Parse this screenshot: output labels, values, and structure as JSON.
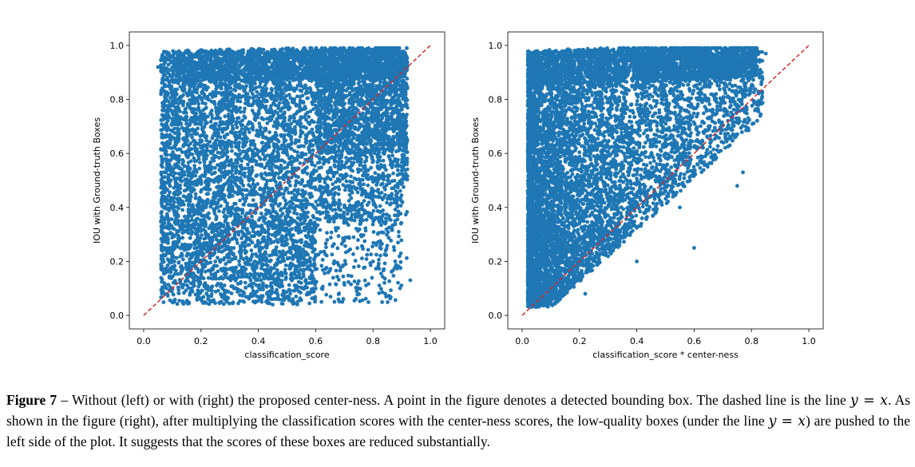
{
  "chart_data": [
    {
      "type": "scatter",
      "name": "left",
      "xlabel": "classification_score",
      "ylabel": "IOU with Ground-truth Boxes",
      "xlim": [
        -0.05,
        1.05
      ],
      "ylim": [
        -0.05,
        1.05
      ],
      "xticks": [
        "0.0",
        "0.2",
        "0.4",
        "0.6",
        "0.8",
        "1.0"
      ],
      "yticks": [
        "0.0",
        "0.2",
        "0.4",
        "0.6",
        "0.8",
        "1.0"
      ],
      "point_color": "#1f77b4",
      "reference_line": {
        "from": [
          0,
          0
        ],
        "to": [
          1,
          1
        ],
        "color": "#d62728",
        "style": "dashed"
      },
      "approx_point_count": 9000,
      "point_sample": [
        {
          "x": 0.05,
          "y": 0.92
        },
        {
          "x": 0.1,
          "y": 0.75
        },
        {
          "x": 0.12,
          "y": 0.55
        },
        {
          "x": 0.15,
          "y": 0.35
        },
        {
          "x": 0.2,
          "y": 0.95
        },
        {
          "x": 0.25,
          "y": 0.2
        },
        {
          "x": 0.3,
          "y": 0.45
        },
        {
          "x": 0.35,
          "y": 0.05
        },
        {
          "x": 0.4,
          "y": 0.98
        },
        {
          "x": 0.45,
          "y": 0.6
        },
        {
          "x": 0.5,
          "y": 0.3
        },
        {
          "x": 0.55,
          "y": 0.85
        },
        {
          "x": 0.6,
          "y": 0.1
        },
        {
          "x": 0.65,
          "y": 0.7
        },
        {
          "x": 0.7,
          "y": 0.4
        },
        {
          "x": 0.75,
          "y": 0.95
        },
        {
          "x": 0.8,
          "y": 0.2
        },
        {
          "x": 0.85,
          "y": 0.9
        },
        {
          "x": 0.9,
          "y": 0.55
        },
        {
          "x": 0.93,
          "y": 0.13
        },
        {
          "x": 0.08,
          "y": 0.1
        },
        {
          "x": 0.15,
          "y": 0.05
        },
        {
          "x": 0.45,
          "y": 0.04
        },
        {
          "x": 0.62,
          "y": 0.05
        },
        {
          "x": 0.9,
          "y": 0.97
        },
        {
          "x": 0.85,
          "y": 0.75
        },
        {
          "x": 0.72,
          "y": 0.6
        }
      ]
    },
    {
      "type": "scatter",
      "name": "right",
      "xlabel": "classification_score * center-ness",
      "ylabel": "IOU with Ground-truth Boxes",
      "xlim": [
        -0.05,
        1.05
      ],
      "ylim": [
        -0.05,
        1.05
      ],
      "xticks": [
        "0.0",
        "0.2",
        "0.4",
        "0.6",
        "0.8",
        "1.0"
      ],
      "yticks": [
        "0.0",
        "0.2",
        "0.4",
        "0.6",
        "0.8",
        "1.0"
      ],
      "point_color": "#1f77b4",
      "reference_line": {
        "from": [
          0,
          0
        ],
        "to": [
          1,
          1
        ],
        "color": "#d62728",
        "style": "dashed"
      },
      "approx_point_count": 9000,
      "point_sample": [
        {
          "x": 0.02,
          "y": 0.95
        },
        {
          "x": 0.05,
          "y": 0.6
        },
        {
          "x": 0.08,
          "y": 0.3
        },
        {
          "x": 0.1,
          "y": 0.12
        },
        {
          "x": 0.15,
          "y": 0.85
        },
        {
          "x": 0.2,
          "y": 0.5
        },
        {
          "x": 0.25,
          "y": 0.3
        },
        {
          "x": 0.3,
          "y": 0.97
        },
        {
          "x": 0.35,
          "y": 0.65
        },
        {
          "x": 0.4,
          "y": 0.45
        },
        {
          "x": 0.45,
          "y": 0.85
        },
        {
          "x": 0.5,
          "y": 0.6
        },
        {
          "x": 0.55,
          "y": 0.4
        },
        {
          "x": 0.6,
          "y": 0.9
        },
        {
          "x": 0.65,
          "y": 0.7
        },
        {
          "x": 0.7,
          "y": 0.95
        },
        {
          "x": 0.75,
          "y": 0.48
        },
        {
          "x": 0.8,
          "y": 0.85
        },
        {
          "x": 0.85,
          "y": 0.97
        },
        {
          "x": 0.03,
          "y": 0.05
        },
        {
          "x": 0.22,
          "y": 0.08
        },
        {
          "x": 0.4,
          "y": 0.2
        },
        {
          "x": 0.6,
          "y": 0.25
        },
        {
          "x": 0.77,
          "y": 0.53
        }
      ]
    }
  ],
  "caption": {
    "label": "Figure 7",
    "dash": " – ",
    "line1": "Without (left) or with (right) the proposed center-ness. A point in the figure denotes a detected bounding box. The dashed line",
    "line2a": "is the line ",
    "math": "y = x",
    "line2b": ". As shown in the figure (right), after multiplying the classification scores with the center-ness scores, the low-quality",
    "line3a": "boxes (under the line ",
    "line3b": ") are pushed to the left side of the plot. It suggests that the scores of these boxes are reduced substantially."
  }
}
